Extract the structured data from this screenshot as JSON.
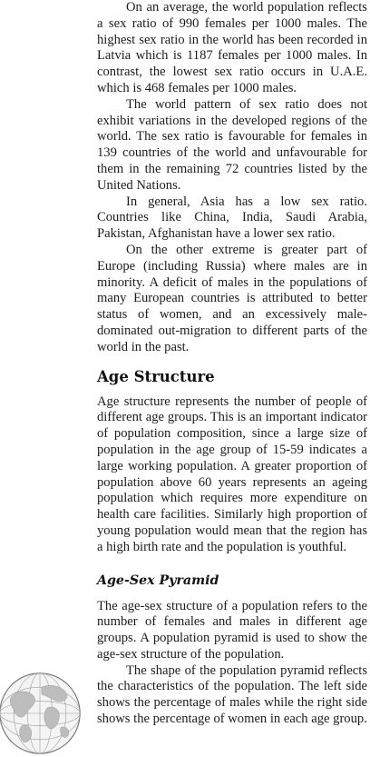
{
  "paragraphs_top": [
    "On an average, the world population reflects a sex ratio of 990 females per 1000 males. The highest sex ratio in the world has been recorded in Latvia which is 1187 females per 1000 males. In contrast, the lowest sex ratio occurs in U.A.E. which is 468 females per 1000 males.",
    "The world pattern of sex ratio does not exhibit variations in the developed regions of the world. The sex ratio is favourable for females in 139 countries of the world and unfavourable for them in the remaining 72 countries listed by the United Nations.",
    "In general, Asia has a low sex ratio. Countries like China, India, Saudi Arabia, Pakistan, Afghanistan have a lower sex ratio.",
    "On the other extreme is greater part of Europe (including Russia) where males are in minority. A deficit of males in the populations of many European countries is attributed to better status of women, and an excessively male-dominated out-migration to different parts of the world in the past."
  ],
  "age_structure": {
    "heading": "Age Structure",
    "paragraph": "Age structure represents the number of people of different age groups. This is an important indicator of population composition, since a large size of population in the age group of 15-59 indicates a large working population. A greater proportion of population above 60 years represents an ageing population which requires more expenditure on health care facilities. Similarly high proportion of young population would mean that the region has a high birth rate and the population is youthful."
  },
  "age_sex_pyramid": {
    "heading": "Age-Sex Pyramid",
    "paragraphs": [
      "The age-sex structure of a population refers to the number of females and males in different age groups. A population pyramid is used to show the age-sex structure of the population.",
      "The shape of the population pyramid reflects the characteristics of the population. The left side shows the percentage of males while the right side shows the percentage of women in each age group."
    ]
  }
}
